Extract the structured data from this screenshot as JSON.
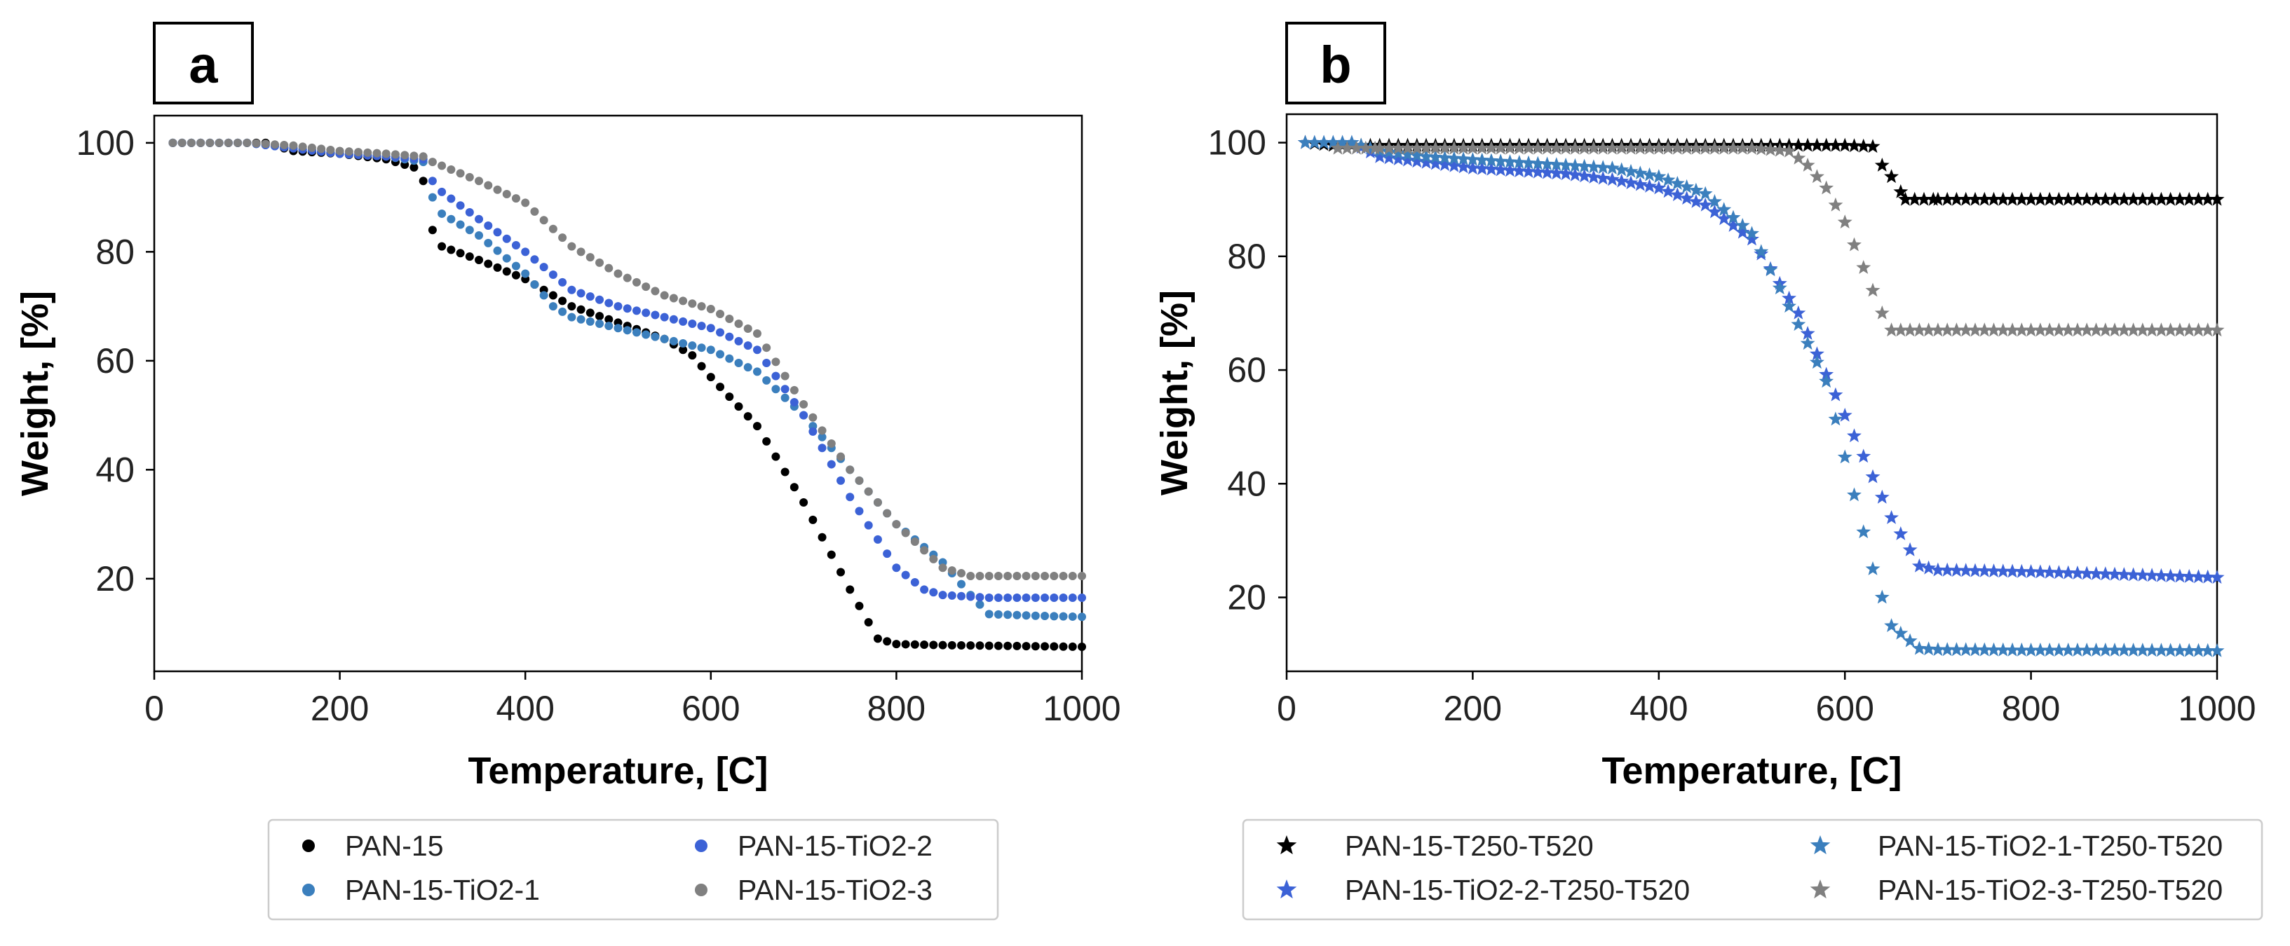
{
  "chart_data": [
    {
      "panel_label": "a",
      "type": "scatter",
      "marker": "circle",
      "xlabel": "Temperature, [C]",
      "ylabel": "Weight, [%]",
      "xlim": [
        0,
        1000
      ],
      "ylim": [
        3,
        105
      ],
      "xticks": [
        "0",
        "200",
        "400",
        "600",
        "800",
        "1000"
      ],
      "yticks": [
        "20",
        "40",
        "60",
        "80",
        "100"
      ],
      "legend_position": "bottom",
      "series": [
        {
          "name": "PAN-15",
          "color": "#000000",
          "points": [
            [
              20,
              100
            ],
            [
              100,
              100
            ],
            [
              120,
              100
            ],
            [
              150,
              98.5
            ],
            [
              200,
              98
            ],
            [
              250,
              97
            ],
            [
              280,
              95.5
            ],
            [
              290,
              93
            ],
            [
              300,
              84
            ],
            [
              310,
              81
            ],
            [
              350,
              78.5
            ],
            [
              400,
              75
            ],
            [
              450,
              70
            ],
            [
              500,
              67
            ],
            [
              550,
              64
            ],
            [
              580,
              61
            ],
            [
              600,
              57
            ],
            [
              650,
              48
            ],
            [
              700,
              34
            ],
            [
              750,
              18
            ],
            [
              780,
              9
            ],
            [
              800,
              8
            ],
            [
              850,
              7.8
            ],
            [
              900,
              7.7
            ],
            [
              1000,
              7.5
            ]
          ]
        },
        {
          "name": "PAN-15-TiO2-1",
          "color": "#3b7fbd",
          "points": [
            [
              20,
              100
            ],
            [
              100,
              100
            ],
            [
              150,
              99
            ],
            [
              200,
              98
            ],
            [
              250,
              97.5
            ],
            [
              290,
              96.5
            ],
            [
              300,
              90
            ],
            [
              310,
              87
            ],
            [
              350,
              83
            ],
            [
              400,
              76
            ],
            [
              430,
              70
            ],
            [
              450,
              68
            ],
            [
              500,
              66
            ],
            [
              550,
              64
            ],
            [
              600,
              62
            ],
            [
              650,
              58
            ],
            [
              700,
              50
            ],
            [
              750,
              40
            ],
            [
              800,
              30
            ],
            [
              850,
              23
            ],
            [
              880,
              17
            ],
            [
              900,
              13.5
            ],
            [
              950,
              13.2
            ],
            [
              1000,
              13
            ]
          ]
        },
        {
          "name": "PAN-15-TiO2-2",
          "color": "#3c62d6",
          "points": [
            [
              20,
              100
            ],
            [
              100,
              100
            ],
            [
              150,
              99
            ],
            [
              200,
              98
            ],
            [
              250,
              97.5
            ],
            [
              290,
              97
            ],
            [
              300,
              93
            ],
            [
              310,
              91
            ],
            [
              350,
              86
            ],
            [
              400,
              80
            ],
            [
              450,
              73
            ],
            [
              500,
              70
            ],
            [
              550,
              68
            ],
            [
              600,
              66
            ],
            [
              650,
              62
            ],
            [
              700,
              50
            ],
            [
              750,
              35
            ],
            [
              800,
              22
            ],
            [
              830,
              18
            ],
            [
              850,
              17
            ],
            [
              900,
              16.5
            ],
            [
              1000,
              16.5
            ]
          ]
        },
        {
          "name": "PAN-15-TiO2-3",
          "color": "#808080",
          "points": [
            [
              20,
              100
            ],
            [
              100,
              100
            ],
            [
              150,
              99.5
            ],
            [
              200,
              98.5
            ],
            [
              250,
              98
            ],
            [
              290,
              97.5
            ],
            [
              300,
              96.5
            ],
            [
              350,
              93
            ],
            [
              400,
              89
            ],
            [
              450,
              81
            ],
            [
              500,
              76
            ],
            [
              550,
              72
            ],
            [
              600,
              69.5
            ],
            [
              650,
              65
            ],
            [
              700,
              52
            ],
            [
              750,
              40
            ],
            [
              800,
              30
            ],
            [
              850,
              22
            ],
            [
              880,
              20.5
            ],
            [
              900,
              20.5
            ],
            [
              1000,
              20.5
            ]
          ]
        }
      ]
    },
    {
      "panel_label": "b",
      "type": "scatter",
      "marker": "star",
      "xlabel": "Temperature, [C]",
      "ylabel": "Weight, [%]",
      "xlim": [
        0,
        1000
      ],
      "ylim": [
        7,
        105
      ],
      "xticks": [
        "0",
        "200",
        "400",
        "600",
        "800",
        "1000"
      ],
      "yticks": [
        "20",
        "40",
        "60",
        "80",
        "100"
      ],
      "legend_position": "bottom",
      "series": [
        {
          "name": "PAN-15-T250-T520",
          "color": "#000000",
          "points": [
            [
              20,
              100
            ],
            [
              50,
              99.5
            ],
            [
              100,
              99.5
            ],
            [
              200,
              99.5
            ],
            [
              400,
              99.5
            ],
            [
              600,
              99.5
            ],
            [
              630,
              99.3
            ],
            [
              640,
              96
            ],
            [
              650,
              94
            ],
            [
              665,
              90
            ],
            [
              700,
              90
            ],
            [
              800,
              90
            ],
            [
              900,
              90
            ],
            [
              1000,
              90
            ]
          ]
        },
        {
          "name": "PAN-15-TiO2-2-T250-T520",
          "color": "#3c62d6",
          "points": [
            [
              20,
              100
            ],
            [
              70,
              100
            ],
            [
              100,
              97.5
            ],
            [
              150,
              96.5
            ],
            [
              200,
              95.5
            ],
            [
              300,
              94.5
            ],
            [
              350,
              93.5
            ],
            [
              400,
              92
            ],
            [
              450,
              89
            ],
            [
              500,
              83
            ],
            [
              550,
              70
            ],
            [
              600,
              52
            ],
            [
              650,
              34
            ],
            [
              680,
              25.5
            ],
            [
              700,
              24.8
            ],
            [
              800,
              24.5
            ],
            [
              900,
              24
            ],
            [
              1000,
              23.5
            ]
          ]
        },
        {
          "name": "PAN-15-TiO2-1-T250-T520",
          "color": "#3b7fbd",
          "points": [
            [
              20,
              100
            ],
            [
              70,
              100
            ],
            [
              100,
              98.5
            ],
            [
              150,
              97.5
            ],
            [
              200,
              97
            ],
            [
              300,
              96
            ],
            [
              350,
              95.5
            ],
            [
              400,
              94
            ],
            [
              450,
              91
            ],
            [
              500,
              84
            ],
            [
              550,
              68
            ],
            [
              580,
              58
            ],
            [
              610,
              38
            ],
            [
              630,
              25
            ],
            [
              650,
              15
            ],
            [
              680,
              11
            ],
            [
              700,
              10.8
            ],
            [
              800,
              10.7
            ],
            [
              900,
              10.7
            ],
            [
              1000,
              10.6
            ]
          ]
        },
        {
          "name": "PAN-15-TiO2-3-T250-T520",
          "color": "#808080",
          "points": [
            [
              55,
              99
            ],
            [
              100,
              99
            ],
            [
              200,
              99
            ],
            [
              400,
              99
            ],
            [
              500,
              99
            ],
            [
              540,
              98.5
            ],
            [
              560,
              96
            ],
            [
              580,
              92
            ],
            [
              600,
              86
            ],
            [
              620,
              78
            ],
            [
              640,
              70
            ],
            [
              650,
              67
            ],
            [
              700,
              67
            ],
            [
              800,
              67
            ],
            [
              900,
              67
            ],
            [
              1000,
              67
            ]
          ]
        }
      ]
    }
  ]
}
